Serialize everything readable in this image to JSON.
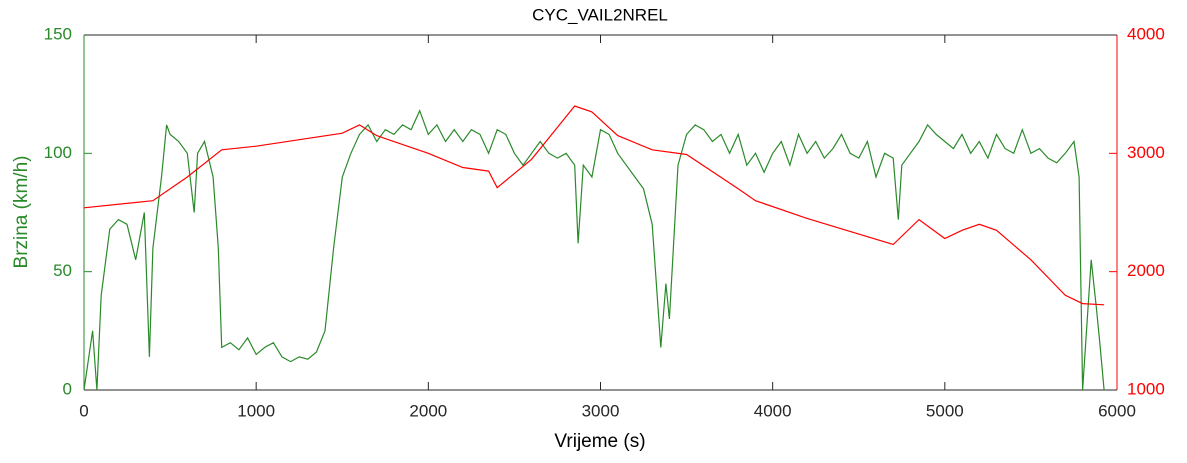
{
  "chart_data": {
    "type": "line",
    "title": "CYC_VAIL2NREL",
    "x_label": "Vrijeme (s)",
    "y_label": "Brzina (km/h)",
    "xlim": [
      0,
      6000
    ],
    "xticks": [
      0,
      1000,
      2000,
      3000,
      4000,
      5000,
      6000
    ],
    "ylim": [
      0,
      150
    ],
    "yticks": [
      0,
      50,
      100,
      150
    ],
    "y2lim": [
      1000,
      4000
    ],
    "y2ticks": [
      1000,
      2000,
      3000,
      4000
    ],
    "y_color": "#2a8a2a",
    "y2_color": "#ff0000",
    "series": [
      {
        "color": "#2a8a2a",
        "x": [
          0,
          50,
          75,
          100,
          150,
          200,
          250,
          300,
          350,
          380,
          400,
          450,
          480,
          500,
          550,
          600,
          640,
          660,
          700,
          750,
          780,
          800,
          850,
          900,
          950,
          1000,
          1050,
          1100,
          1150,
          1200,
          1250,
          1300,
          1350,
          1400,
          1450,
          1500,
          1550,
          1600,
          1650,
          1700,
          1750,
          1800,
          1850,
          1900,
          1950,
          2000,
          2050,
          2100,
          2150,
          2200,
          2250,
          2300,
          2350,
          2400,
          2450,
          2500,
          2550,
          2600,
          2650,
          2700,
          2750,
          2800,
          2850,
          2870,
          2900,
          2950,
          3000,
          3050,
          3100,
          3150,
          3200,
          3250,
          3300,
          3350,
          3380,
          3400,
          3450,
          3500,
          3550,
          3600,
          3650,
          3700,
          3750,
          3800,
          3850,
          3900,
          3950,
          4000,
          4050,
          4100,
          4150,
          4200,
          4250,
          4300,
          4350,
          4400,
          4450,
          4500,
          4550,
          4600,
          4650,
          4700,
          4730,
          4750,
          4800,
          4850,
          4900,
          4950,
          5000,
          5050,
          5100,
          5150,
          5200,
          5250,
          5300,
          5350,
          5400,
          5450,
          5500,
          5550,
          5600,
          5650,
          5700,
          5750,
          5780,
          5800,
          5850,
          5880,
          5900,
          5925
        ],
        "values": [
          0,
          25,
          0,
          40,
          68,
          72,
          70,
          55,
          75,
          14,
          60,
          90,
          112,
          108,
          105,
          100,
          75,
          100,
          105,
          90,
          60,
          18,
          20,
          17,
          22,
          15,
          18,
          20,
          14,
          12,
          14,
          13,
          16,
          25,
          60,
          90,
          100,
          108,
          112,
          105,
          110,
          108,
          112,
          110,
          118,
          108,
          112,
          105,
          110,
          105,
          110,
          108,
          100,
          110,
          108,
          100,
          95,
          100,
          105,
          100,
          98,
          100,
          95,
          62,
          95,
          90,
          110,
          108,
          100,
          95,
          90,
          85,
          70,
          18,
          45,
          30,
          95,
          108,
          112,
          110,
          105,
          108,
          100,
          108,
          95,
          100,
          92,
          100,
          105,
          95,
          108,
          100,
          105,
          98,
          102,
          108,
          100,
          98,
          105,
          90,
          100,
          98,
          72,
          95,
          100,
          105,
          112,
          108,
          105,
          102,
          108,
          100,
          105,
          98,
          108,
          102,
          100,
          110,
          100,
          102,
          98,
          96,
          100,
          105,
          90,
          0,
          55,
          35,
          20,
          0
        ]
      },
      {
        "color": "#ff0000",
        "axis": "y2",
        "x": [
          0,
          400,
          600,
          800,
          1000,
          1500,
          1600,
          1700,
          1900,
          2000,
          2200,
          2350,
          2400,
          2600,
          2850,
          2950,
          3100,
          3300,
          3500,
          3800,
          3900,
          4200,
          4700,
          4850,
          5000,
          5100,
          5200,
          5300,
          5500,
          5700,
          5800,
          5925
        ],
        "values": [
          2540,
          2600,
          2800,
          3030,
          3060,
          3170,
          3240,
          3150,
          3050,
          3000,
          2880,
          2850,
          2710,
          2950,
          3400,
          3350,
          3150,
          3030,
          2990,
          2700,
          2600,
          2450,
          2230,
          2440,
          2280,
          2350,
          2400,
          2350,
          2100,
          1800,
          1730,
          1720
        ]
      }
    ]
  }
}
